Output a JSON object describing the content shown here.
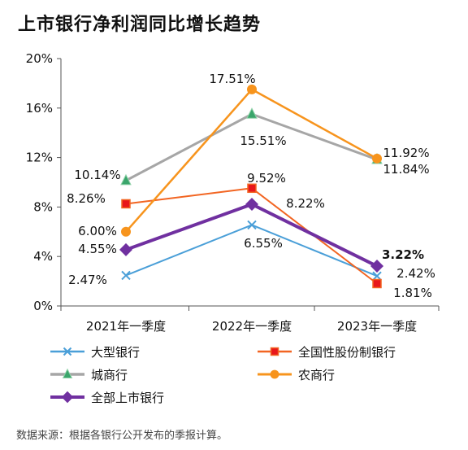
{
  "title": "上市银行净利润同比增长趋势",
  "source": "数据来源：根据各银行公开发布的季报计算。",
  "chart_data": {
    "type": "line",
    "categories": [
      "2021年一季度",
      "2022年一季度",
      "2023年一季度"
    ],
    "ylim": [
      0,
      20
    ],
    "yticks": [
      0,
      4,
      8,
      12,
      16,
      20
    ],
    "ytick_labels": [
      "0%",
      "4%",
      "8%",
      "12%",
      "16%",
      "20%"
    ],
    "grid": false,
    "legend_position": "bottom",
    "series": [
      {
        "name": "大型银行",
        "values": [
          2.47,
          6.55,
          2.42
        ],
        "labels": [
          "2.47%",
          "6.55%",
          "2.42%"
        ],
        "color": "#4a9fd8",
        "marker": "x",
        "width": 2,
        "bold": [
          false,
          false,
          false
        ]
      },
      {
        "name": "全国性股份制银行",
        "values": [
          8.26,
          9.52,
          1.81
        ],
        "labels": [
          "8.26%",
          "9.52%",
          "1.81%"
        ],
        "color": "#f26522",
        "marker": "square",
        "width": 2,
        "bold": [
          false,
          false,
          false
        ]
      },
      {
        "name": "城商行",
        "values": [
          10.14,
          15.51,
          11.84
        ],
        "labels": [
          "10.14%",
          "15.51%",
          "11.84%"
        ],
        "color": "#a6a6a6",
        "marker": "triangle",
        "width": 3,
        "bold": [
          false,
          false,
          false
        ]
      },
      {
        "name": "农商行",
        "values": [
          6.0,
          17.51,
          11.92
        ],
        "labels": [
          "6.00%",
          "17.51%",
          "11.92%"
        ],
        "color": "#f7941d",
        "marker": "circle",
        "width": 2.5,
        "bold": [
          false,
          false,
          false
        ]
      },
      {
        "name": "全部上市银行",
        "values": [
          4.55,
          8.22,
          3.22
        ],
        "labels": [
          "4.55%",
          "8.22%",
          "3.22%"
        ],
        "color": "#7030a0",
        "marker": "diamond",
        "width": 4,
        "bold": [
          false,
          false,
          true
        ]
      }
    ]
  }
}
